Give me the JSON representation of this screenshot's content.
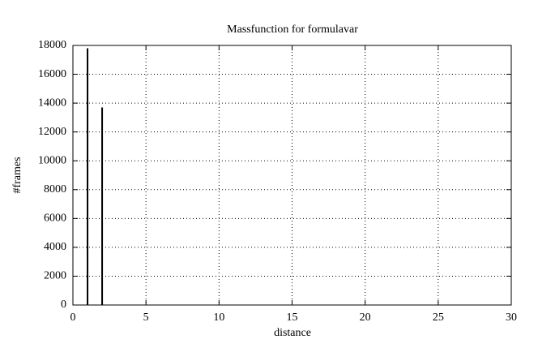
{
  "chart_data": {
    "type": "impulse",
    "title": "Massfunction for formulavar",
    "x_label": "distance",
    "y_label": "#frames",
    "x": [
      1,
      2
    ],
    "values": [
      17800,
      13700
    ],
    "color": "#000000",
    "xlim": [
      0,
      30
    ],
    "xticks": [
      0,
      5,
      10,
      15,
      20,
      25,
      30
    ],
    "ylim": [
      0,
      18000
    ],
    "yticks": [
      0,
      2000,
      4000,
      6000,
      8000,
      10000,
      12000,
      14000,
      16000,
      18000
    ],
    "grid": true
  }
}
